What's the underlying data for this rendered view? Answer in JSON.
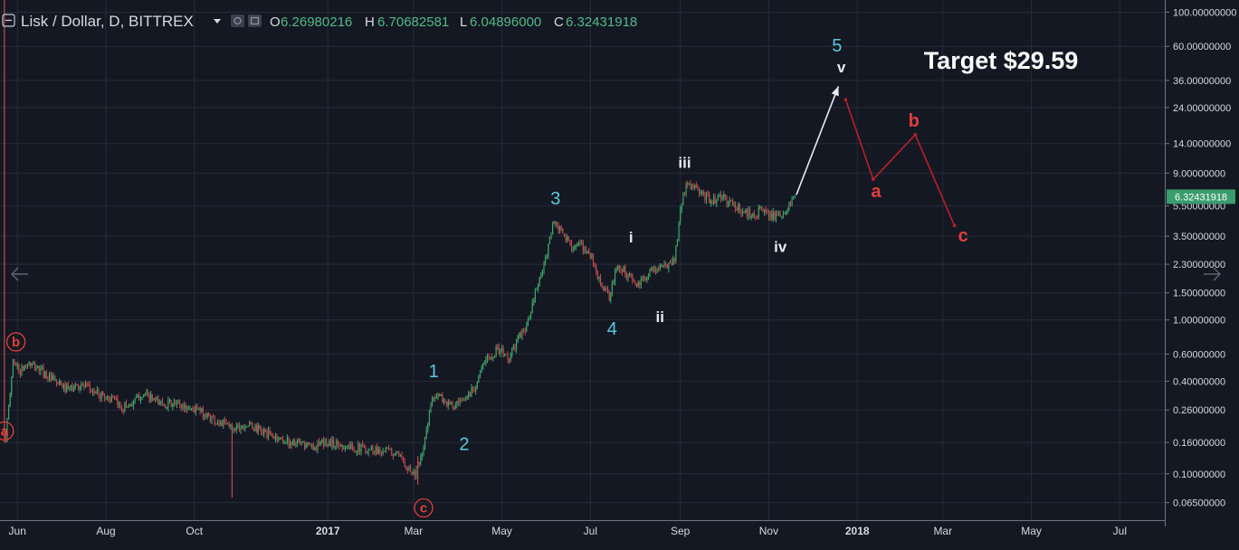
{
  "header": {
    "symbol_title": "Lisk / Dollar, D, BITTREX",
    "ohlc": [
      {
        "key": "O",
        "value": "6.26980216"
      },
      {
        "key": "H",
        "value": "6.70682581"
      },
      {
        "key": "L",
        "value": "6.04896000"
      },
      {
        "key": "C",
        "value": "6.32431918"
      }
    ]
  },
  "chart_data": {
    "type": "candlestick",
    "title": "Lisk / Dollar, D, BITTREX",
    "y_scale": "log",
    "ylim": [
      0.05,
      120
    ],
    "x_range": [
      "2016-05-20",
      "2018-08-01"
    ],
    "grid": true,
    "last_price": 6.32431918,
    "last_price_label": "6.32431918",
    "y_ticks": [
      {
        "value": 100,
        "label": "100.00000000"
      },
      {
        "value": 60,
        "label": "60.00000000"
      },
      {
        "value": 36,
        "label": "36.00000000"
      },
      {
        "value": 24,
        "label": "24.00000000"
      },
      {
        "value": 14,
        "label": "14.00000000"
      },
      {
        "value": 9,
        "label": "9.00000000"
      },
      {
        "value": 5.5,
        "label": "5.50000000"
      },
      {
        "value": 3.5,
        "label": "3.50000000"
      },
      {
        "value": 2.3,
        "label": "2.30000000"
      },
      {
        "value": 1.5,
        "label": "1.50000000"
      },
      {
        "value": 1.0,
        "label": "1.00000000"
      },
      {
        "value": 0.6,
        "label": "0.60000000"
      },
      {
        "value": 0.4,
        "label": "0.40000000"
      },
      {
        "value": 0.26,
        "label": "0.26000000"
      },
      {
        "value": 0.16,
        "label": "0.16000000"
      },
      {
        "value": 0.1,
        "label": "0.10000000"
      },
      {
        "value": 0.065,
        "label": "0.06500000"
      }
    ],
    "x_ticks": [
      {
        "date": "2016-06-01",
        "label": "Jun",
        "bold": false
      },
      {
        "date": "2016-08-01",
        "label": "Aug",
        "bold": false
      },
      {
        "date": "2016-10-01",
        "label": "Oct",
        "bold": false
      },
      {
        "date": "2017-01-01",
        "label": "2017",
        "bold": true
      },
      {
        "date": "2017-03-01",
        "label": "Mar",
        "bold": false
      },
      {
        "date": "2017-05-01",
        "label": "May",
        "bold": false
      },
      {
        "date": "2017-07-01",
        "label": "Jul",
        "bold": false
      },
      {
        "date": "2017-09-01",
        "label": "Sep",
        "bold": false
      },
      {
        "date": "2017-11-01",
        "label": "Nov",
        "bold": false
      },
      {
        "date": "2018-01-01",
        "label": "2018",
        "bold": true
      },
      {
        "date": "2018-03-01",
        "label": "Mar",
        "bold": false
      },
      {
        "date": "2018-05-01",
        "label": "May",
        "bold": false
      },
      {
        "date": "2018-07-01",
        "label": "Jul",
        "bold": false
      }
    ],
    "price_path": [
      [
        "2016-05-24",
        0.18
      ],
      [
        "2016-05-26",
        0.26
      ],
      [
        "2016-05-29",
        0.55
      ],
      [
        "2016-06-03",
        0.46
      ],
      [
        "2016-06-08",
        0.52
      ],
      [
        "2016-06-16",
        0.48
      ],
      [
        "2016-06-26",
        0.4
      ],
      [
        "2016-07-06",
        0.35
      ],
      [
        "2016-07-14",
        0.38
      ],
      [
        "2016-07-24",
        0.34
      ],
      [
        "2016-08-04",
        0.31
      ],
      [
        "2016-08-12",
        0.27
      ],
      [
        "2016-08-20",
        0.29
      ],
      [
        "2016-08-26",
        0.33
      ],
      [
        "2016-09-06",
        0.29
      ],
      [
        "2016-09-20",
        0.28
      ],
      [
        "2016-10-03",
        0.26
      ],
      [
        "2016-10-16",
        0.22
      ],
      [
        "2016-10-27",
        0.2
      ],
      [
        "2016-11-06",
        0.21
      ],
      [
        "2016-11-21",
        0.18
      ],
      [
        "2016-12-06",
        0.16
      ],
      [
        "2016-12-21",
        0.15
      ],
      [
        "2017-01-01",
        0.16
      ],
      [
        "2017-01-16",
        0.15
      ],
      [
        "2017-01-31",
        0.145
      ],
      [
        "2017-02-13",
        0.14
      ],
      [
        "2017-02-23",
        0.12
      ],
      [
        "2017-03-01",
        0.1
      ],
      [
        "2017-03-06",
        0.12
      ],
      [
        "2017-03-11",
        0.21
      ],
      [
        "2017-03-14",
        0.33
      ],
      [
        "2017-03-20",
        0.31
      ],
      [
        "2017-03-28",
        0.27
      ],
      [
        "2017-04-04",
        0.29
      ],
      [
        "2017-04-12",
        0.37
      ],
      [
        "2017-04-20",
        0.55
      ],
      [
        "2017-04-28",
        0.65
      ],
      [
        "2017-05-06",
        0.56
      ],
      [
        "2017-05-12",
        0.75
      ],
      [
        "2017-05-19",
        0.95
      ],
      [
        "2017-05-25",
        1.6
      ],
      [
        "2017-05-31",
        2.4
      ],
      [
        "2017-06-05",
        4.3
      ],
      [
        "2017-06-10",
        3.8
      ],
      [
        "2017-06-17",
        3.1
      ],
      [
        "2017-06-24",
        3.0
      ],
      [
        "2017-07-01",
        2.7
      ],
      [
        "2017-07-07",
        1.8
      ],
      [
        "2017-07-14",
        1.4
      ],
      [
        "2017-07-20",
        2.3
      ],
      [
        "2017-07-26",
        2.0
      ],
      [
        "2017-08-03",
        1.65
      ],
      [
        "2017-08-11",
        2.1
      ],
      [
        "2017-08-20",
        2.2
      ],
      [
        "2017-08-28",
        2.5
      ],
      [
        "2017-08-31",
        4.2
      ],
      [
        "2017-09-03",
        7.0
      ],
      [
        "2017-09-09",
        7.6
      ],
      [
        "2017-09-16",
        6.4
      ],
      [
        "2017-09-23",
        6.0
      ],
      [
        "2017-09-30",
        6.3
      ],
      [
        "2017-10-07",
        5.6
      ],
      [
        "2017-10-15",
        5.0
      ],
      [
        "2017-10-22",
        4.9
      ],
      [
        "2017-10-29",
        5.2
      ],
      [
        "2017-11-05",
        4.7
      ],
      [
        "2017-11-10",
        4.5
      ],
      [
        "2017-11-14",
        5.4
      ],
      [
        "2017-11-19",
        6.32
      ]
    ],
    "spikes": [
      {
        "date": "2016-05-23",
        "high": 120,
        "low": 0.16
      },
      {
        "date": "2016-10-27",
        "high": 0.21,
        "low": 0.07
      },
      {
        "date": "2017-03-04",
        "high": 0.13,
        "low": 0.085
      }
    ],
    "projections": [
      {
        "name": "impulse-v",
        "color": "#e8eaf0",
        "points": [
          [
            "2017-11-20",
            6.5
          ],
          [
            "2017-12-19",
            33
          ]
        ]
      },
      {
        "name": "correction-abc",
        "color": "#b8202a",
        "points": [
          [
            "2017-12-24",
            27
          ],
          [
            "2018-01-12",
            8.2
          ],
          [
            "2018-02-10",
            16
          ],
          [
            "2018-03-09",
            4.1
          ]
        ]
      }
    ],
    "wave_labels": [
      {
        "text": "a",
        "date": "2016-05-23",
        "price": 0.19,
        "color": "#e0403a",
        "circled": true
      },
      {
        "text": "b",
        "date": "2016-05-31",
        "price": 0.72,
        "color": "#e0403a",
        "circled": true
      },
      {
        "text": "c",
        "date": "2017-03-08",
        "price": 0.06,
        "color": "#e0403a",
        "circled": true
      },
      {
        "text": "1",
        "date": "2017-03-15",
        "price": 0.46,
        "color": "#5cc9dc",
        "circled": false
      },
      {
        "text": "2",
        "date": "2017-04-05",
        "price": 0.155,
        "color": "#5cc9dc",
        "circled": false
      },
      {
        "text": "3",
        "date": "2017-06-07",
        "price": 6.1,
        "color": "#5cc9dc",
        "circled": false
      },
      {
        "text": "4",
        "date": "2017-07-16",
        "price": 0.87,
        "color": "#5cc9dc",
        "circled": false
      },
      {
        "text": "5",
        "date": "2017-12-18",
        "price": 60,
        "color": "#5cc9dc",
        "circled": false
      },
      {
        "text": "i",
        "date": "2017-07-29",
        "price": 3.45,
        "color": "#e8eaf0",
        "circled": false
      },
      {
        "text": "ii",
        "date": "2017-08-18",
        "price": 1.05,
        "color": "#e8eaf0",
        "circled": false
      },
      {
        "text": "iii",
        "date": "2017-09-04",
        "price": 10.6,
        "color": "#e8eaf0",
        "circled": false
      },
      {
        "text": "iv",
        "date": "2017-11-09",
        "price": 3.0,
        "color": "#e8eaf0",
        "circled": false
      },
      {
        "text": "v",
        "date": "2017-12-21",
        "price": 44,
        "color": "#e8eaf0",
        "circled": false
      },
      {
        "text": "a",
        "date": "2018-01-14",
        "price": 6.8,
        "color": "#e0403a",
        "circled": false
      },
      {
        "text": "b",
        "date": "2018-02-09",
        "price": 19.5,
        "color": "#e0403a",
        "circled": false
      },
      {
        "text": "c",
        "date": "2018-03-15",
        "price": 3.5,
        "color": "#e0403a",
        "circled": false
      }
    ],
    "annotations": [
      {
        "text": "Target $29.59",
        "color": "#ffffff"
      }
    ]
  },
  "colors": {
    "background": "#141823",
    "grid": "#262b38",
    "axis_text": "#d6d9e0",
    "up": "#3fa86b",
    "down": "#c44a4f",
    "price_badge": "#3a9d6e",
    "ohlc_value": "#53b987"
  },
  "icons": [
    "collapse-icon",
    "dropdown-caret-icon",
    "settings-icon",
    "indicator-toggle-icon",
    "scroll-left-icon",
    "scroll-right-icon"
  ]
}
